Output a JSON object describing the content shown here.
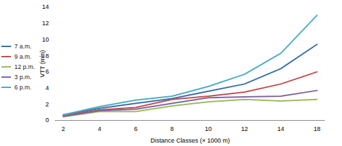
{
  "chart_data": {
    "type": "line",
    "categories": [
      "2",
      "4",
      "6",
      "8",
      "10",
      "12",
      "14",
      "18"
    ],
    "x_label": "Distance Classes (× 1000 m)",
    "y_label": "VTT (min)",
    "ylim": [
      0,
      14
    ],
    "yticks": [
      0,
      2,
      4,
      6,
      8,
      10,
      12,
      14
    ],
    "grid": false,
    "legend": "left",
    "series": [
      {
        "name": "7 a.m.",
        "color": "#3a6ea8",
        "values": [
          0.7,
          1.5,
          2.1,
          2.7,
          3.6,
          4.5,
          6.4,
          9.4
        ]
      },
      {
        "name": "9 a.m.",
        "color": "#c0504d",
        "values": [
          0.6,
          1.3,
          1.6,
          2.6,
          3.0,
          3.5,
          4.5,
          6.0
        ]
      },
      {
        "name": "12 p.m.",
        "color": "#9bbb59",
        "values": [
          0.45,
          1.1,
          1.1,
          1.8,
          2.3,
          2.6,
          2.4,
          2.6
        ]
      },
      {
        "name": "3 p.m.",
        "color": "#8064a2",
        "values": [
          0.5,
          1.2,
          1.4,
          2.1,
          2.8,
          2.9,
          3.0,
          3.7
        ]
      },
      {
        "name": "6 p.m.",
        "color": "#4bacc6",
        "values": [
          0.7,
          1.7,
          2.5,
          3.0,
          4.2,
          5.7,
          8.3,
          13.0
        ]
      }
    ]
  }
}
